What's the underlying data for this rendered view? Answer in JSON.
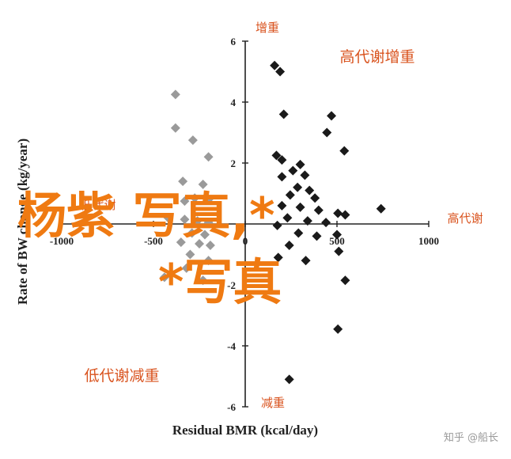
{
  "chart_data": {
    "type": "scatter",
    "xlabel": "Residual BMR (kcal/day)",
    "ylabel": "Rate of BW change (kg/year)",
    "xlim": [
      -1000,
      1000
    ],
    "ylim": [
      -6,
      6
    ],
    "x_ticks": [
      -1000,
      -500,
      0,
      500,
      1000
    ],
    "y_ticks": [
      6,
      4,
      2,
      -2,
      -4,
      -6
    ],
    "x_tick_labels": [
      "-1000",
      "-500",
      "0",
      "500",
      "1000"
    ],
    "y_tick_labels": [
      "6",
      "4",
      "2",
      "-2",
      "-4",
      "-6"
    ],
    "grid": false,
    "series": [
      {
        "color": "#9a9a9a",
        "marker": "diamond",
        "points": [
          {
            "x": -380,
            "y": 4.25
          },
          {
            "x": -380,
            "y": 3.15
          },
          {
            "x": -285,
            "y": 2.75
          },
          {
            "x": -200,
            "y": 2.2
          },
          {
            "x": -340,
            "y": 1.4
          },
          {
            "x": -230,
            "y": 1.3
          },
          {
            "x": -330,
            "y": 0.75
          },
          {
            "x": -275,
            "y": 0.85
          },
          {
            "x": -200,
            "y": 0.8
          },
          {
            "x": -420,
            "y": 0.2
          },
          {
            "x": -330,
            "y": 0.15
          },
          {
            "x": -260,
            "y": 0.1
          },
          {
            "x": -200,
            "y": 0.05
          },
          {
            "x": -290,
            "y": -0.3
          },
          {
            "x": -220,
            "y": -0.35
          },
          {
            "x": -350,
            "y": -0.6
          },
          {
            "x": -250,
            "y": -0.65
          },
          {
            "x": -190,
            "y": -0.7
          },
          {
            "x": -300,
            "y": -1.0
          },
          {
            "x": -200,
            "y": -1.2
          },
          {
            "x": -320,
            "y": -1.45
          },
          {
            "x": -440,
            "y": -1.75
          },
          {
            "x": -230,
            "y": -1.85
          }
        ]
      },
      {
        "color": "#1a1a1a",
        "marker": "diamond",
        "points": [
          {
            "x": 160,
            "y": 5.2
          },
          {
            "x": 190,
            "y": 5.0
          },
          {
            "x": 210,
            "y": 3.6
          },
          {
            "x": 470,
            "y": 3.55
          },
          {
            "x": 445,
            "y": 3.0
          },
          {
            "x": 540,
            "y": 2.4
          },
          {
            "x": 170,
            "y": 2.25
          },
          {
            "x": 200,
            "y": 2.1
          },
          {
            "x": 300,
            "y": 1.95
          },
          {
            "x": 260,
            "y": 1.75
          },
          {
            "x": 325,
            "y": 1.6
          },
          {
            "x": 200,
            "y": 1.55
          },
          {
            "x": 285,
            "y": 1.2
          },
          {
            "x": 350,
            "y": 1.1
          },
          {
            "x": 245,
            "y": 0.95
          },
          {
            "x": 380,
            "y": 0.85
          },
          {
            "x": 200,
            "y": 0.6
          },
          {
            "x": 300,
            "y": 0.55
          },
          {
            "x": 400,
            "y": 0.45
          },
          {
            "x": 505,
            "y": 0.35
          },
          {
            "x": 545,
            "y": 0.3
          },
          {
            "x": 740,
            "y": 0.5
          },
          {
            "x": 230,
            "y": 0.2
          },
          {
            "x": 340,
            "y": 0.1
          },
          {
            "x": 440,
            "y": 0.05
          },
          {
            "x": 175,
            "y": -0.05
          },
          {
            "x": 290,
            "y": -0.3
          },
          {
            "x": 390,
            "y": -0.4
          },
          {
            "x": 500,
            "y": -0.35
          },
          {
            "x": 240,
            "y": -0.7
          },
          {
            "x": 510,
            "y": -0.9
          },
          {
            "x": 180,
            "y": -1.1
          },
          {
            "x": 330,
            "y": -1.2
          },
          {
            "x": 545,
            "y": -1.85
          },
          {
            "x": 505,
            "y": -3.45
          },
          {
            "x": 240,
            "y": -5.1
          }
        ]
      }
    ]
  },
  "quadrant_labels": {
    "top": "增重",
    "top_right": "高代谢增重",
    "right": "高代谢",
    "left": "低代谢",
    "bottom_left": "低代谢减重",
    "bottom": "减重"
  },
  "overlay_text": {
    "line1": "杨紫 写真,*",
    "line2": "*写真"
  },
  "watermark": "知乎 @船长"
}
